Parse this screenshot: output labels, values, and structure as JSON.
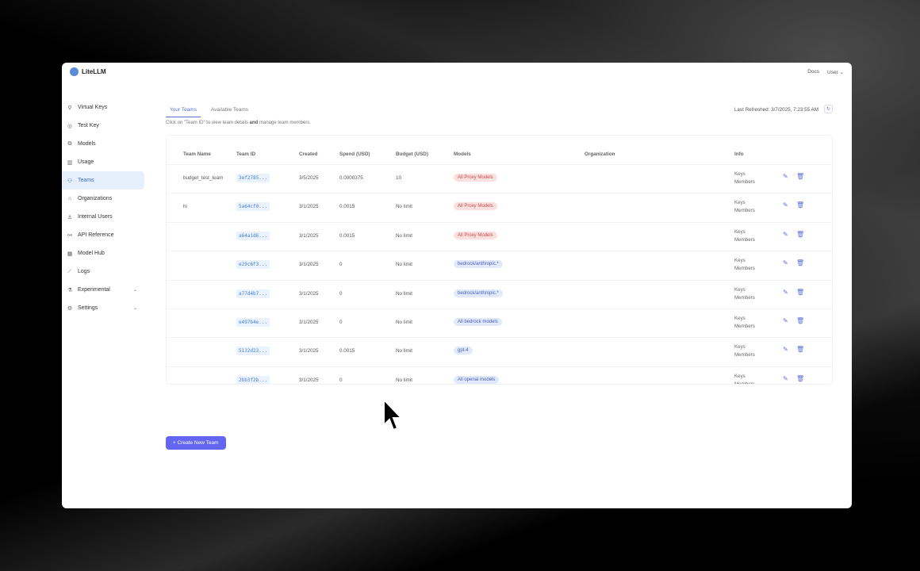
{
  "app": {
    "logo": "LiteLLM",
    "docs": "Docs",
    "user": "User"
  },
  "sidebar": {
    "items": [
      {
        "label": "Virtual Keys",
        "icon": "key-icon"
      },
      {
        "label": "Test Key",
        "icon": "play-circle-icon"
      },
      {
        "label": "Models",
        "icon": "block-icon"
      },
      {
        "label": "Usage",
        "icon": "bar-chart-icon"
      },
      {
        "label": "Teams",
        "icon": "team-icon",
        "active": true
      },
      {
        "label": "Organizations",
        "icon": "bank-icon"
      },
      {
        "label": "Internal Users",
        "icon": "user-icon"
      },
      {
        "label": "API Reference",
        "icon": "api-icon"
      },
      {
        "label": "Model Hub",
        "icon": "apps-icon"
      },
      {
        "label": "Logs",
        "icon": "line-chart-icon"
      },
      {
        "label": "Experimental",
        "icon": "experiment-icon",
        "expandable": true
      },
      {
        "label": "Settings",
        "icon": "settings-icon",
        "expandable": true
      }
    ]
  },
  "tabs": [
    "Your Teams",
    "Available Teams"
  ],
  "hint": {
    "pre": "Click on \"Team ID\" to view team details ",
    "bold": "and",
    "post": " manage team members."
  },
  "last_refreshed": "Last Refreshed: 3/7/2025, 7:23:55 AM",
  "table": {
    "headers": [
      "Team Name",
      "Team ID",
      "Created",
      "Spend (USD)",
      "Budget (USD)",
      "Models",
      "Organization",
      "Info"
    ],
    "rows": [
      {
        "name": "budget_test_team",
        "id": "3ef2785...",
        "created": "3/5/2025",
        "spend": "0.0000375",
        "budget": "10",
        "model": "All Proxy Models",
        "model_color": "red",
        "info": [
          "Keys",
          "Members"
        ]
      },
      {
        "name": "hi",
        "id": "5a64cf0...",
        "created": "3/1/2025",
        "spend": "0.0015",
        "budget": "No limit",
        "model": "All Proxy Models",
        "model_color": "red",
        "info": [
          "Keys",
          "Members"
        ]
      },
      {
        "name": "",
        "id": "a64a1d6...",
        "created": "3/1/2025",
        "spend": "0.0015",
        "budget": "No limit",
        "model": "All Proxy Models",
        "model_color": "red",
        "info": [
          "Keys",
          "Members"
        ]
      },
      {
        "name": "",
        "id": "e29c6f3...",
        "created": "3/1/2025",
        "spend": "0",
        "budget": "No limit",
        "model": "bedrock/anthropic.*",
        "model_color": "blue",
        "info": [
          "Keys",
          "Members"
        ]
      },
      {
        "name": "",
        "id": "a77d4b7...",
        "created": "3/1/2025",
        "spend": "0",
        "budget": "No limit",
        "model": "bedrock/anthropic.*",
        "model_color": "blue",
        "info": [
          "Keys",
          "Members"
        ]
      },
      {
        "name": "",
        "id": "e497b4e...",
        "created": "3/1/2025",
        "spend": "0",
        "budget": "No limit",
        "model": "All bedrock models",
        "model_color": "blue",
        "info": [
          "Keys",
          "Members"
        ]
      },
      {
        "name": "",
        "id": "5132d23...",
        "created": "3/1/2025",
        "spend": "0.0015",
        "budget": "No limit",
        "model": "gpt-4",
        "model_color": "blue",
        "info": [
          "Keys",
          "Members"
        ]
      },
      {
        "name": "",
        "id": "2bb3f2b...",
        "created": "3/1/2025",
        "spend": "0",
        "budget": "No limit",
        "model": "All openai models",
        "model_color": "blue",
        "info": [
          "Keys",
          "Members"
        ]
      }
    ]
  },
  "create_button": "+ Create New Team"
}
